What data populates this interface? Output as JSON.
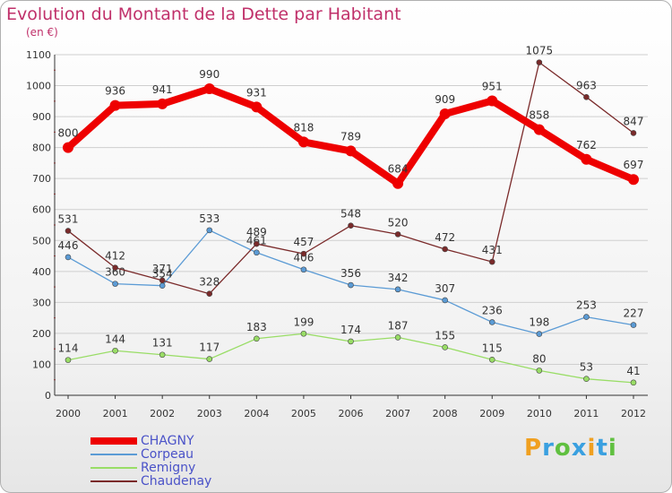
{
  "header": {
    "title": "Evolution du Montant de la Dette par Habitant",
    "subtitle": "(en €)"
  },
  "colors": {
    "title": "#c0306a",
    "legend_text": "#4a52c8",
    "axis_text": "#333333",
    "grid": "#cfcfcf",
    "chagny": "#ee0000",
    "corpeau": "#5b9bd5",
    "remigny": "#99dd66",
    "chaudenay": "#7a2a2a"
  },
  "chart_data": {
    "type": "line",
    "title": "Evolution du Montant de la Dette par Habitant",
    "subtitle": "(en €)",
    "xlabel": "",
    "ylabel": "",
    "ylim": [
      0,
      1100
    ],
    "yticks": [
      0,
      100,
      200,
      300,
      400,
      500,
      600,
      700,
      800,
      900,
      1000,
      1100
    ],
    "grid": true,
    "legend_position": "bottom-left",
    "x": [
      "2000",
      "2001",
      "2002",
      "2003",
      "2004",
      "2005",
      "2006",
      "2007",
      "2008",
      "2009",
      "2010",
      "2011",
      "2012"
    ],
    "series": [
      {
        "name": "CHAGNY",
        "color": "#ee0000",
        "emphasis": true,
        "values": [
          800,
          936,
          941,
          990,
          931,
          818,
          789,
          684,
          909,
          951,
          858,
          762,
          697
        ]
      },
      {
        "name": "Corpeau",
        "color": "#5b9bd5",
        "values": [
          446,
          360,
          354,
          533,
          461,
          406,
          356,
          342,
          307,
          236,
          198,
          253,
          227
        ]
      },
      {
        "name": "Remigny",
        "color": "#99dd66",
        "values": [
          114,
          144,
          131,
          117,
          183,
          199,
          174,
          187,
          155,
          115,
          80,
          53,
          41
        ]
      },
      {
        "name": "Chaudenay",
        "color": "#7a2a2a",
        "values": [
          531,
          412,
          371,
          328,
          489,
          457,
          548,
          520,
          472,
          431,
          1075,
          963,
          847
        ]
      }
    ]
  },
  "logo": {
    "letters": [
      "P",
      "r",
      "o",
      "x",
      "i",
      "t",
      "i"
    ],
    "colors": [
      "#f0a020",
      "#3aa0e0",
      "#60c040",
      "#3aa0e0",
      "#f0a020",
      "#3aa0e0",
      "#60c040"
    ]
  }
}
